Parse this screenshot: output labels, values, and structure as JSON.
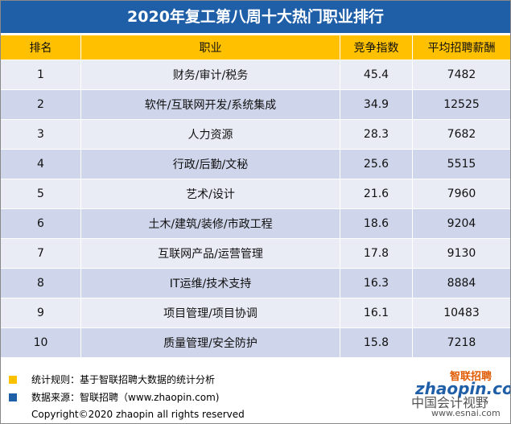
{
  "header": {
    "title": "2020年复工第八周十大热门职业排行"
  },
  "table": {
    "columns": [
      "排名",
      "职业",
      "竞争指数",
      "平均招聘薪酬"
    ],
    "rows": [
      [
        1,
        "财务/审计/税务",
        45.4,
        7482
      ],
      [
        2,
        "软件/互联网开发/系统集成",
        34.9,
        12525
      ],
      [
        3,
        "人力资源",
        28.3,
        7682
      ],
      [
        4,
        "行政/后勤/文秘",
        25.6,
        5515
      ],
      [
        5,
        "艺术/设计",
        21.6,
        7960
      ],
      [
        6,
        "土木/建筑/装修/市政工程",
        18.6,
        9204
      ],
      [
        7,
        "互联网产品/运营管理",
        17.8,
        9130
      ],
      [
        8,
        "IT运维/技术支持",
        16.3,
        8884
      ],
      [
        9,
        "项目管理/项目协调",
        16.1,
        10483
      ],
      [
        10,
        "质量管理/安全防护",
        15.8,
        7218
      ]
    ]
  },
  "footer": {
    "notes": [
      "统计规则：基于智联招聘大数据的统计分析",
      "数据来源：智联招聘（www.zhaopin.com)"
    ],
    "copyright": "Copyright©2020 zhaopin all rights reserved",
    "logo_cn": "智联招聘",
    "logo_en": "zhaopin.com",
    "watermark": "中国会计视野",
    "watermark_url": "www.esnai.com"
  }
}
